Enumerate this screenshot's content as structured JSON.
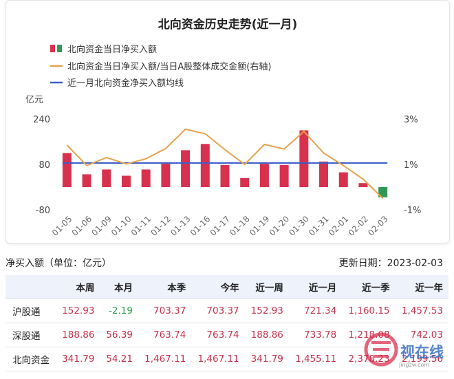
{
  "chart_data": {
    "type": "bar",
    "title": "北向资金历史走势(近一月)",
    "y_unit": "亿元",
    "legend": [
      {
        "label": "北向资金当日净买入额",
        "marker": "bar",
        "colors": [
          "#d8314e",
          "#2f9a58"
        ]
      },
      {
        "label": "北向资金当日净买入额/当日A股整体成交金额(右轴)",
        "marker": "line",
        "color": "#e8a24b"
      },
      {
        "label": "近一月北向资金净买入额均线",
        "marker": "line",
        "color": "#3b5ec7"
      }
    ],
    "categories": [
      "01-05",
      "01-06",
      "01-09",
      "01-10",
      "01-11",
      "01-12",
      "01-13",
      "01-16",
      "01-17",
      "01-18",
      "01-19",
      "01-20",
      "01-30",
      "01-31",
      "02-01",
      "02-02",
      "02-03"
    ],
    "series": [
      {
        "name": "北向资金当日净买入额",
        "type": "bar",
        "axis": "left",
        "values": [
          120,
          45,
          62,
          40,
          62,
          82,
          130,
          152,
          78,
          32,
          82,
          78,
          200,
          90,
          52,
          14,
          -36
        ],
        "colors": {
          "positive": "#d8314e",
          "negative": "#2f9a58"
        }
      },
      {
        "name": "北向资金当日净买入额/当日A股整体成交金额(右轴)",
        "type": "line",
        "axis": "right",
        "color": "#e8a24b",
        "values": [
          1.85,
          0.95,
          1.3,
          1.02,
          1.25,
          1.7,
          2.55,
          2.35,
          1.65,
          1.0,
          1.88,
          1.68,
          2.45,
          1.5,
          0.95,
          0.35,
          -0.5
        ]
      },
      {
        "name": "近一月北向资金净买入额均线",
        "type": "line",
        "axis": "left",
        "color": "#3b5ec7",
        "values": [
          85,
          85,
          85,
          85,
          85,
          85,
          85,
          85,
          85,
          85,
          85,
          85,
          85,
          85,
          85,
          85,
          85
        ]
      }
    ],
    "ylim_left": [
      -80,
      240
    ],
    "yticks_left": [
      "240",
      "80",
      "-80"
    ],
    "ylim_right": [
      -1,
      3
    ],
    "yticks_right": [
      "3%",
      "1%",
      "-1%"
    ],
    "grid": false
  },
  "table": {
    "title": "净买入额（单位：亿元）",
    "update_label": "更新日期：2023-02-03",
    "columns": [
      "",
      "本周",
      "本月",
      "本季",
      "今年",
      "近一周",
      "近一月",
      "近一季",
      "近一年"
    ],
    "rows": [
      {
        "label": "沪股通",
        "values": [
          "152.93",
          "-2.19",
          "703.37",
          "703.37",
          "152.93",
          "721.34",
          "1,160.15",
          "1,457.53"
        ]
      },
      {
        "label": "深股通",
        "values": [
          "188.86",
          "56.39",
          "763.74",
          "763.74",
          "188.86",
          "733.78",
          "1,218.08",
          "742.03"
        ]
      },
      {
        "label": "北向资金",
        "values": [
          "341.79",
          "54.21",
          "1,467.11",
          "1,467.11",
          "341.79",
          "1,455.11",
          "2,378.23",
          "2,199.56"
        ]
      }
    ]
  },
  "watermark": {
    "text": "视在线",
    "url": "jingzw.com"
  }
}
